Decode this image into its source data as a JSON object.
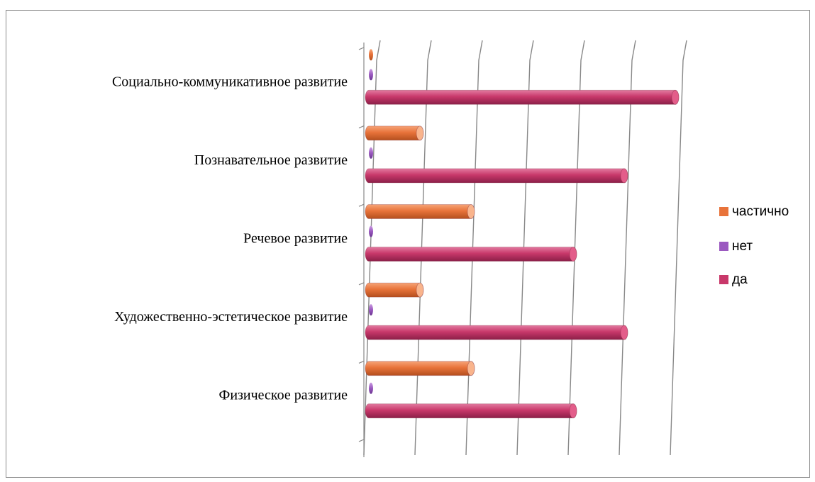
{
  "chart_data": {
    "type": "bar",
    "orientation": "horizontal",
    "style": "3d-cylinder",
    "categories": [
      "Социально-коммуникативное развитие",
      "Познавательное развитие",
      "Речевое развитие",
      "Художественно-эстетическое развитие",
      "Физическое развитие"
    ],
    "series": [
      {
        "name": "частично",
        "color": "#e8733a",
        "values": [
          0,
          1,
          2,
          1,
          2
        ]
      },
      {
        "name": "нет",
        "color": "#9b59c0",
        "values": [
          0,
          0,
          0,
          0,
          0
        ]
      },
      {
        "name": "да",
        "color": "#c8386a",
        "values": [
          6,
          5,
          4,
          5,
          4
        ]
      }
    ],
    "xlim": [
      0,
      6
    ],
    "grid": true,
    "legend_position": "right",
    "title": "",
    "xlabel": "",
    "ylabel": ""
  }
}
